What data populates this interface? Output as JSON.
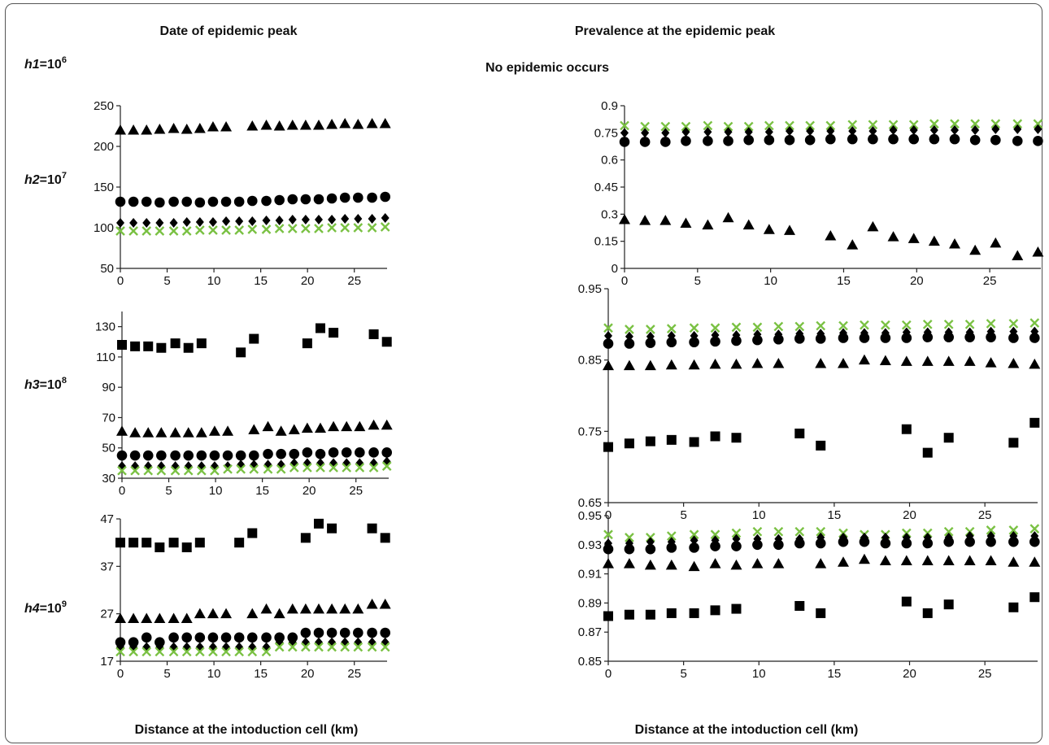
{
  "headers": {
    "left": "Date of epidemic peak",
    "right": "Prevalence at the epidemic peak",
    "no_epidemic": "No epidemic occurs"
  },
  "row_labels": [
    {
      "pre": "h1",
      "base": "=10",
      "exp": "6"
    },
    {
      "pre": "h2",
      "base": "=10",
      "exp": "7"
    },
    {
      "pre": "h3",
      "base": "=10",
      "exp": "8"
    },
    {
      "pre": "h4",
      "base": "=10",
      "exp": "9"
    }
  ],
  "xlabels": {
    "left": "Distance at the intoduction cell (km)",
    "right": "Distance at the intoduction cell (km)"
  },
  "colors": {
    "cross": "#7ac143",
    "marker": "#000000"
  },
  "chart_data": [
    {
      "type": "scatter",
      "panel": "h2-date",
      "x": [
        0,
        1.4,
        2.8,
        4.2,
        5.7,
        7.1,
        8.5,
        9.9,
        11.3,
        12.7,
        14.1,
        15.6,
        17.0,
        18.4,
        19.8,
        21.2,
        22.6,
        24.0,
        25.4,
        26.9,
        28.3
      ],
      "xlim": [
        0,
        28.5
      ],
      "ylim": [
        50,
        250
      ],
      "xticks": [
        0,
        5,
        10,
        15,
        20,
        25
      ],
      "yticks": [
        50,
        100,
        150,
        200,
        250
      ],
      "series": [
        {
          "marker": "triangle",
          "values": [
            220,
            220,
            220,
            221,
            222,
            221,
            222,
            224,
            224,
            null,
            225,
            226,
            225,
            226,
            226,
            226,
            227,
            228,
            227,
            228,
            228
          ]
        },
        {
          "marker": "circle",
          "values": [
            132,
            132,
            132,
            131,
            132,
            132,
            131,
            132,
            132,
            132,
            133,
            133,
            134,
            135,
            135,
            135,
            136,
            137,
            137,
            137,
            138
          ]
        },
        {
          "marker": "diamond",
          "values": [
            106,
            106,
            106,
            106,
            106,
            107,
            107,
            107,
            108,
            108,
            108,
            109,
            109,
            110,
            110,
            110,
            110,
            111,
            111,
            111,
            112
          ]
        },
        {
          "marker": "cross",
          "values": [
            96,
            96,
            96,
            96,
            96,
            96,
            97,
            97,
            97,
            97,
            98,
            98,
            99,
            99,
            99,
            99,
            100,
            100,
            100,
            100,
            101
          ]
        }
      ]
    },
    {
      "type": "scatter",
      "panel": "h2-prevalence",
      "x": [
        0,
        1.4,
        2.8,
        4.2,
        5.7,
        7.1,
        8.5,
        9.9,
        11.3,
        12.7,
        14.1,
        15.6,
        17.0,
        18.4,
        19.8,
        21.2,
        22.6,
        24.0,
        25.4,
        26.9,
        28.3
      ],
      "xlim": [
        0,
        28.5
      ],
      "ylim": [
        0,
        0.9
      ],
      "xticks": [
        0,
        5,
        10,
        15,
        20,
        25
      ],
      "yticks": [
        0,
        0.15,
        0.3,
        0.45,
        0.6,
        0.75,
        0.9
      ],
      "series": [
        {
          "marker": "cross",
          "values": [
            0.79,
            0.785,
            0.785,
            0.785,
            0.79,
            0.785,
            0.785,
            0.79,
            0.79,
            0.79,
            0.79,
            0.795,
            0.795,
            0.795,
            0.795,
            0.8,
            0.8,
            0.8,
            0.8,
            0.8,
            0.8
          ]
        },
        {
          "marker": "diamond",
          "values": [
            0.75,
            0.75,
            0.75,
            0.755,
            0.755,
            0.755,
            0.755,
            0.755,
            0.76,
            0.76,
            0.76,
            0.76,
            0.76,
            0.765,
            0.765,
            0.765,
            0.765,
            0.765,
            0.77,
            0.77,
            0.77
          ]
        },
        {
          "marker": "circle",
          "values": [
            0.7,
            0.7,
            0.7,
            0.705,
            0.705,
            0.705,
            0.71,
            0.71,
            0.71,
            0.71,
            0.715,
            0.715,
            0.715,
            0.715,
            0.715,
            0.715,
            0.715,
            0.71,
            0.71,
            0.705,
            0.705
          ]
        },
        {
          "marker": "triangle",
          "values": [
            0.27,
            0.265,
            0.265,
            0.25,
            0.24,
            0.28,
            0.24,
            0.215,
            0.21,
            null,
            0.18,
            0.13,
            0.23,
            0.175,
            0.165,
            0.15,
            0.135,
            0.1,
            0.14,
            0.07,
            0.09
          ]
        }
      ]
    },
    {
      "type": "scatter",
      "panel": "h3-date",
      "x": [
        0,
        1.4,
        2.8,
        4.2,
        5.7,
        7.1,
        8.5,
        9.9,
        11.3,
        12.7,
        14.1,
        15.6,
        17.0,
        18.4,
        19.8,
        21.2,
        22.6,
        24.0,
        25.4,
        26.9,
        28.3
      ],
      "xlim": [
        0,
        28.5
      ],
      "ylim": [
        30,
        140
      ],
      "xticks": [
        0,
        5,
        10,
        15,
        20,
        25
      ],
      "yticks": [
        30,
        50,
        70,
        90,
        110,
        130
      ],
      "series": [
        {
          "marker": "square",
          "values": [
            118,
            117,
            117,
            116,
            119,
            116,
            119,
            null,
            null,
            113,
            122,
            null,
            null,
            null,
            119,
            129,
            126,
            null,
            null,
            125,
            120
          ]
        },
        {
          "marker": "triangle",
          "values": [
            61,
            60,
            60,
            60,
            60,
            60,
            60,
            61,
            61,
            null,
            62,
            64,
            61,
            62,
            63,
            63,
            64,
            64,
            64,
            65,
            65
          ]
        },
        {
          "marker": "circle",
          "values": [
            45,
            45,
            45,
            45,
            45,
            45,
            45,
            45,
            45,
            45,
            45,
            46,
            46,
            46,
            47,
            46,
            47,
            47,
            47,
            47,
            47
          ]
        },
        {
          "marker": "diamond",
          "values": [
            38,
            38,
            38,
            38,
            38,
            38,
            38,
            38,
            38,
            39,
            39,
            39,
            39,
            40,
            40,
            40,
            40,
            40,
            40,
            40,
            41
          ]
        },
        {
          "marker": "cross",
          "values": [
            35,
            35,
            35,
            35,
            35,
            35,
            35,
            35,
            36,
            36,
            36,
            36,
            36,
            37,
            37,
            37,
            37,
            37,
            37,
            37,
            38
          ]
        }
      ]
    },
    {
      "type": "scatter",
      "panel": "h3-prevalence",
      "x": [
        0,
        1.4,
        2.8,
        4.2,
        5.7,
        7.1,
        8.5,
        9.9,
        11.3,
        12.7,
        14.1,
        15.6,
        17.0,
        18.4,
        19.8,
        21.2,
        22.6,
        24.0,
        25.4,
        26.9,
        28.3
      ],
      "xlim": [
        0,
        28.5
      ],
      "ylim": [
        0.65,
        0.95
      ],
      "xticks": [
        0,
        5,
        10,
        15,
        20,
        25
      ],
      "yticks": [
        0.65,
        0.75,
        0.85,
        0.95
      ],
      "series": [
        {
          "marker": "cross",
          "values": [
            0.895,
            0.893,
            0.893,
            0.894,
            0.895,
            0.895,
            0.896,
            0.896,
            0.897,
            0.897,
            0.898,
            0.898,
            0.899,
            0.899,
            0.899,
            0.9,
            0.9,
            0.9,
            0.901,
            0.901,
            0.902
          ]
        },
        {
          "marker": "diamond",
          "values": [
            0.884,
            0.883,
            0.883,
            0.884,
            0.884,
            0.885,
            0.885,
            0.886,
            0.886,
            0.887,
            0.887,
            0.888,
            0.888,
            0.888,
            0.889,
            0.889,
            0.889,
            0.889,
            0.89,
            0.89,
            0.89
          ]
        },
        {
          "marker": "circle",
          "values": [
            0.873,
            0.873,
            0.874,
            0.875,
            0.875,
            0.876,
            0.877,
            0.878,
            0.879,
            0.88,
            0.88,
            0.881,
            0.881,
            0.881,
            0.881,
            0.882,
            0.882,
            0.882,
            0.882,
            0.881,
            0.881
          ]
        },
        {
          "marker": "triangle",
          "values": [
            0.842,
            0.842,
            0.842,
            0.843,
            0.843,
            0.844,
            0.844,
            0.845,
            0.845,
            null,
            0.845,
            0.845,
            0.85,
            0.849,
            0.848,
            0.848,
            0.848,
            0.848,
            0.846,
            0.845,
            0.844
          ]
        },
        {
          "marker": "square",
          "values": [
            0.728,
            0.733,
            0.736,
            0.738,
            0.735,
            0.743,
            0.741,
            null,
            null,
            0.747,
            0.73,
            null,
            null,
            null,
            0.753,
            0.72,
            0.741,
            null,
            null,
            0.734,
            0.762
          ]
        }
      ]
    },
    {
      "type": "scatter",
      "panel": "h4-date",
      "x": [
        0,
        1.4,
        2.8,
        4.2,
        5.7,
        7.1,
        8.5,
        9.9,
        11.3,
        12.7,
        14.1,
        15.6,
        17.0,
        18.4,
        19.8,
        21.2,
        22.6,
        24.0,
        25.4,
        26.9,
        28.3
      ],
      "xlim": [
        0,
        28.5
      ],
      "ylim": [
        17,
        47
      ],
      "xticks": [
        0,
        5,
        10,
        15,
        20,
        25
      ],
      "yticks": [
        17,
        27,
        37,
        47
      ],
      "series": [
        {
          "marker": "square",
          "values": [
            42,
            42,
            42,
            41,
            42,
            41,
            42,
            null,
            null,
            42,
            44,
            null,
            null,
            null,
            43,
            46,
            45,
            null,
            null,
            45,
            43
          ]
        },
        {
          "marker": "triangle",
          "values": [
            26,
            26,
            26,
            26,
            26,
            26,
            27,
            27,
            27,
            null,
            27,
            28,
            27,
            28,
            28,
            28,
            28,
            28,
            28,
            29,
            29
          ]
        },
        {
          "marker": "circle",
          "values": [
            21,
            21,
            22,
            21,
            22,
            22,
            22,
            22,
            22,
            22,
            22,
            22,
            22,
            22,
            23,
            23,
            23,
            23,
            23,
            23,
            23
          ]
        },
        {
          "marker": "diamond",
          "values": [
            20,
            20,
            20,
            20,
            20,
            20,
            20,
            20,
            20,
            20,
            20,
            20,
            21,
            21,
            21,
            21,
            21,
            21,
            21,
            21,
            21
          ]
        },
        {
          "marker": "cross",
          "values": [
            19,
            19,
            19,
            19,
            19,
            19,
            19,
            19,
            19,
            19,
            19,
            19,
            20,
            20,
            20,
            20,
            20,
            20,
            20,
            20,
            20
          ]
        }
      ]
    },
    {
      "type": "scatter",
      "panel": "h4-prevalence",
      "x": [
        0,
        1.4,
        2.8,
        4.2,
        5.7,
        7.1,
        8.5,
        9.9,
        11.3,
        12.7,
        14.1,
        15.6,
        17.0,
        18.4,
        19.8,
        21.2,
        22.6,
        24.0,
        25.4,
        26.9,
        28.3
      ],
      "xlim": [
        0,
        28.5
      ],
      "ylim": [
        0.85,
        0.95
      ],
      "xticks": [
        0,
        5,
        10,
        15,
        20,
        25
      ],
      "yticks": [
        0.85,
        0.87,
        0.89,
        0.91,
        0.93,
        0.95
      ],
      "series": [
        {
          "marker": "cross",
          "values": [
            0.937,
            0.935,
            0.935,
            0.936,
            0.937,
            0.937,
            0.938,
            0.939,
            0.939,
            0.939,
            0.939,
            0.938,
            0.937,
            0.937,
            0.938,
            0.938,
            0.939,
            0.939,
            0.94,
            0.94,
            0.941
          ]
        },
        {
          "marker": "diamond",
          "values": [
            0.931,
            0.931,
            0.932,
            0.932,
            0.933,
            0.933,
            0.934,
            0.934,
            0.934,
            0.934,
            0.935,
            0.935,
            0.935,
            0.935,
            0.935,
            0.935,
            0.935,
            0.936,
            0.936,
            0.936,
            0.936
          ]
        },
        {
          "marker": "circle",
          "values": [
            0.927,
            0.927,
            0.927,
            0.928,
            0.928,
            0.929,
            0.929,
            0.93,
            0.93,
            0.931,
            0.931,
            0.932,
            0.932,
            0.931,
            0.931,
            0.931,
            0.932,
            0.932,
            0.932,
            0.932,
            0.932
          ]
        },
        {
          "marker": "triangle",
          "values": [
            0.917,
            0.917,
            0.916,
            0.916,
            0.915,
            0.917,
            0.916,
            0.917,
            0.917,
            null,
            0.917,
            0.918,
            0.92,
            0.919,
            0.919,
            0.919,
            0.919,
            0.919,
            0.919,
            0.918,
            0.918
          ]
        },
        {
          "marker": "square",
          "values": [
            0.881,
            0.882,
            0.882,
            0.883,
            0.883,
            0.885,
            0.886,
            null,
            null,
            0.888,
            0.883,
            null,
            null,
            null,
            0.891,
            0.883,
            0.889,
            null,
            null,
            0.887,
            0.894
          ]
        }
      ]
    }
  ]
}
